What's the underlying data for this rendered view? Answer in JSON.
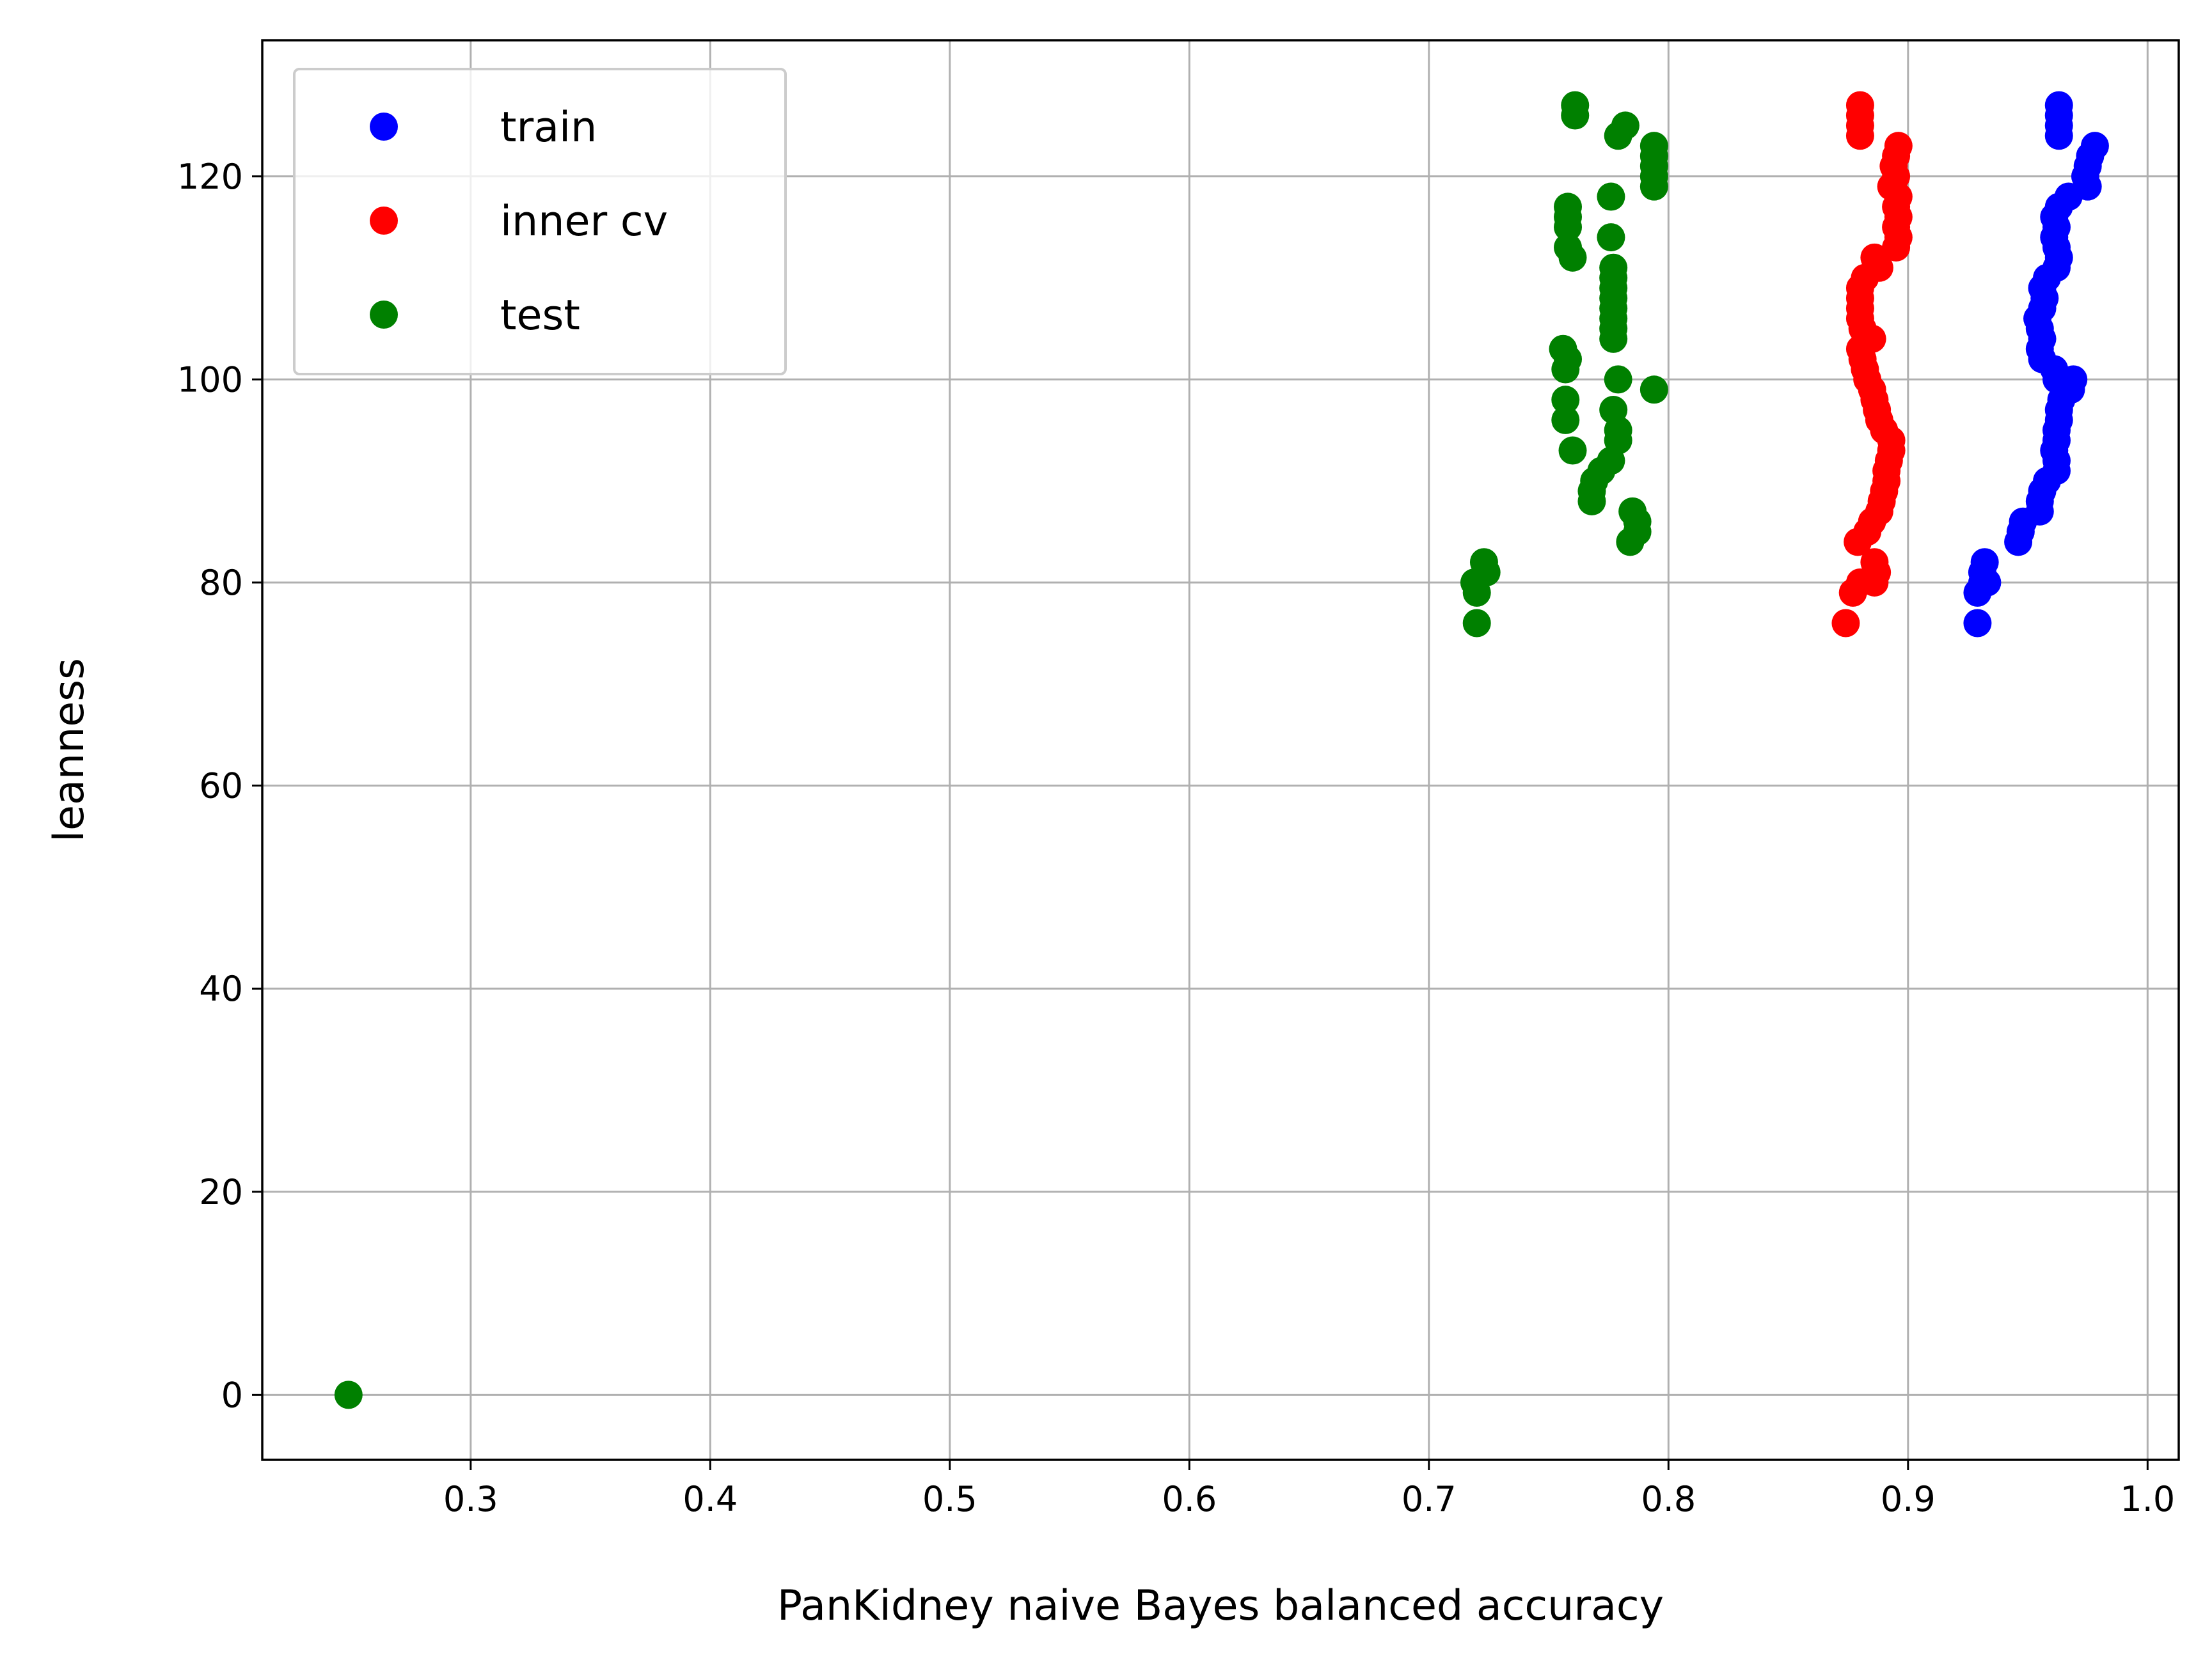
{
  "chart_data": {
    "type": "scatter",
    "title": "",
    "xlabel": "PanKidney naive Bayes balanced accuracy",
    "ylabel": "leanness",
    "xlim": [
      0.213,
      1.013
    ],
    "ylim": [
      -6.4,
      133.4
    ],
    "xticks": [
      0.3,
      0.4,
      0.5,
      0.6,
      0.7,
      0.8,
      0.9,
      1.0
    ],
    "xtick_labels": [
      "0.3",
      "0.4",
      "0.5",
      "0.6",
      "0.7",
      "0.8",
      "0.9",
      "1.0"
    ],
    "yticks": [
      0,
      20,
      40,
      60,
      80,
      100,
      120
    ],
    "ytick_labels": [
      "0",
      "20",
      "40",
      "60",
      "80",
      "100",
      "120"
    ],
    "grid": true,
    "legend": "upper-left",
    "series": [
      {
        "name": "train",
        "color": "#0000ff",
        "points": [
          [
            0.929,
            76
          ],
          [
            0.929,
            79
          ],
          [
            0.931,
            80
          ],
          [
            0.933,
            80
          ],
          [
            0.931,
            81
          ],
          [
            0.932,
            82
          ],
          [
            0.946,
            84
          ],
          [
            0.947,
            85
          ],
          [
            0.948,
            86
          ],
          [
            0.955,
            87
          ],
          [
            0.955,
            88
          ],
          [
            0.956,
            89
          ],
          [
            0.958,
            90
          ],
          [
            0.962,
            91
          ],
          [
            0.962,
            92
          ],
          [
            0.961,
            93
          ],
          [
            0.962,
            94
          ],
          [
            0.962,
            95
          ],
          [
            0.963,
            96
          ],
          [
            0.963,
            97
          ],
          [
            0.964,
            98
          ],
          [
            0.965,
            99
          ],
          [
            0.968,
            99
          ],
          [
            0.969,
            100
          ],
          [
            0.962,
            100
          ],
          [
            0.961,
            101
          ],
          [
            0.956,
            102
          ],
          [
            0.955,
            103
          ],
          [
            0.956,
            104
          ],
          [
            0.955,
            105
          ],
          [
            0.954,
            106
          ],
          [
            0.956,
            107
          ],
          [
            0.957,
            108
          ],
          [
            0.956,
            109
          ],
          [
            0.958,
            110
          ],
          [
            0.962,
            111
          ],
          [
            0.963,
            112
          ],
          [
            0.962,
            113
          ],
          [
            0.961,
            114
          ],
          [
            0.962,
            115
          ],
          [
            0.961,
            116
          ],
          [
            0.963,
            117
          ],
          [
            0.967,
            118
          ],
          [
            0.975,
            119
          ],
          [
            0.974,
            120
          ],
          [
            0.975,
            121
          ],
          [
            0.976,
            122
          ],
          [
            0.978,
            123
          ],
          [
            0.963,
            124
          ],
          [
            0.963,
            125
          ],
          [
            0.963,
            126
          ],
          [
            0.963,
            127
          ]
        ]
      },
      {
        "name": "inner cv",
        "color": "#ff0000",
        "points": [
          [
            0.874,
            76
          ],
          [
            0.877,
            79
          ],
          [
            0.88,
            80
          ],
          [
            0.886,
            80
          ],
          [
            0.887,
            81
          ],
          [
            0.886,
            82
          ],
          [
            0.879,
            84
          ],
          [
            0.883,
            85
          ],
          [
            0.885,
            86
          ],
          [
            0.888,
            87
          ],
          [
            0.889,
            88
          ],
          [
            0.89,
            89
          ],
          [
            0.891,
            90
          ],
          [
            0.891,
            91
          ],
          [
            0.892,
            92
          ],
          [
            0.893,
            93
          ],
          [
            0.893,
            94
          ],
          [
            0.89,
            95
          ],
          [
            0.888,
            96
          ],
          [
            0.887,
            97
          ],
          [
            0.886,
            98
          ],
          [
            0.885,
            99
          ],
          [
            0.883,
            100
          ],
          [
            0.882,
            101
          ],
          [
            0.881,
            102
          ],
          [
            0.88,
            103
          ],
          [
            0.885,
            104
          ],
          [
            0.881,
            105
          ],
          [
            0.88,
            106
          ],
          [
            0.88,
            107
          ],
          [
            0.88,
            108
          ],
          [
            0.88,
            109
          ],
          [
            0.882,
            110
          ],
          [
            0.888,
            111
          ],
          [
            0.886,
            112
          ],
          [
            0.895,
            113
          ],
          [
            0.896,
            114
          ],
          [
            0.895,
            115
          ],
          [
            0.896,
            116
          ],
          [
            0.895,
            117
          ],
          [
            0.896,
            118
          ],
          [
            0.893,
            119
          ],
          [
            0.895,
            120
          ],
          [
            0.894,
            121
          ],
          [
            0.895,
            122
          ],
          [
            0.896,
            123
          ],
          [
            0.88,
            124
          ],
          [
            0.88,
            125
          ],
          [
            0.88,
            126
          ],
          [
            0.88,
            127
          ]
        ]
      },
      {
        "name": "test",
        "color": "#008000",
        "points": [
          [
            0.249,
            0
          ],
          [
            0.72,
            76
          ],
          [
            0.72,
            79
          ],
          [
            0.719,
            80
          ],
          [
            0.724,
            81
          ],
          [
            0.723,
            82
          ],
          [
            0.784,
            84
          ],
          [
            0.787,
            85
          ],
          [
            0.787,
            86
          ],
          [
            0.785,
            87
          ],
          [
            0.768,
            88
          ],
          [
            0.768,
            89
          ],
          [
            0.769,
            90
          ],
          [
            0.772,
            91
          ],
          [
            0.776,
            92
          ],
          [
            0.76,
            93
          ],
          [
            0.779,
            94
          ],
          [
            0.779,
            95
          ],
          [
            0.757,
            96
          ],
          [
            0.777,
            97
          ],
          [
            0.757,
            98
          ],
          [
            0.794,
            99
          ],
          [
            0.779,
            100
          ],
          [
            0.757,
            101
          ],
          [
            0.758,
            102
          ],
          [
            0.756,
            103
          ],
          [
            0.777,
            104
          ],
          [
            0.777,
            105
          ],
          [
            0.777,
            106
          ],
          [
            0.777,
            107
          ],
          [
            0.777,
            108
          ],
          [
            0.777,
            109
          ],
          [
            0.777,
            110
          ],
          [
            0.777,
            111
          ],
          [
            0.76,
            112
          ],
          [
            0.758,
            113
          ],
          [
            0.776,
            114
          ],
          [
            0.758,
            115
          ],
          [
            0.758,
            116
          ],
          [
            0.758,
            117
          ],
          [
            0.776,
            118
          ],
          [
            0.794,
            119
          ],
          [
            0.794,
            120
          ],
          [
            0.794,
            121
          ],
          [
            0.794,
            122
          ],
          [
            0.794,
            123
          ],
          [
            0.779,
            124
          ],
          [
            0.782,
            125
          ],
          [
            0.761,
            126
          ],
          [
            0.761,
            127
          ]
        ]
      }
    ]
  }
}
